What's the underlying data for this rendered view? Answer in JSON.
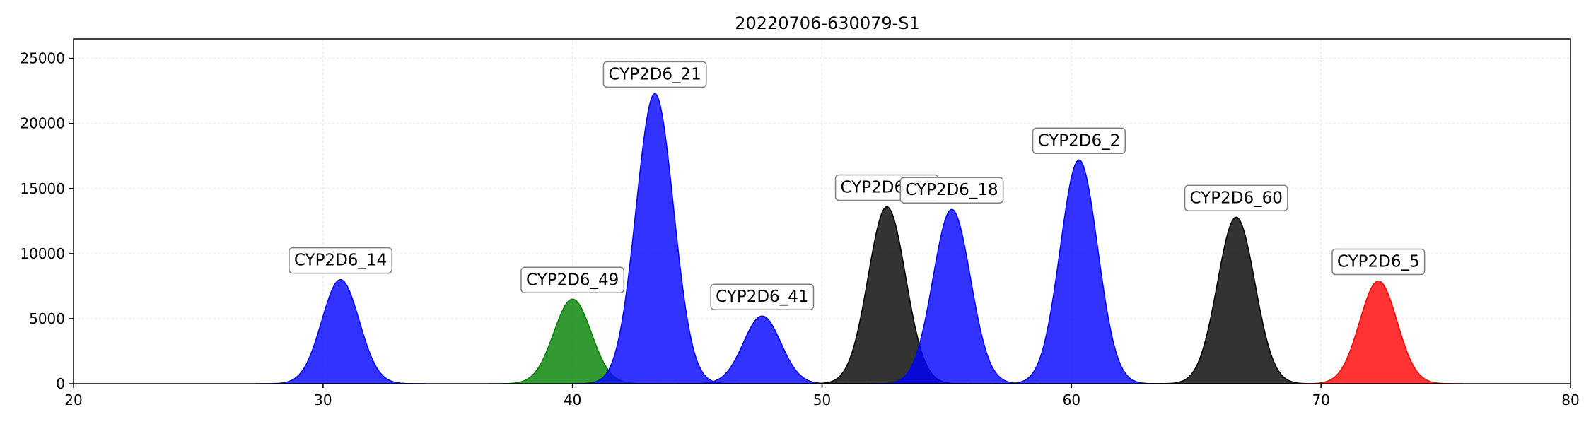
{
  "chart_data": {
    "type": "area",
    "title": "20220706-630079-S1",
    "xlim": [
      20,
      80
    ],
    "ylim": [
      0,
      26500
    ],
    "xticks": [
      20,
      30,
      40,
      50,
      60,
      70,
      80
    ],
    "yticks": [
      0,
      5000,
      10000,
      15000,
      20000,
      25000
    ],
    "grid": true,
    "peaks": [
      {
        "label": "CYP2D6_14",
        "center": 30.7,
        "height": 8000,
        "sigma": 0.75,
        "color": "#0000ff"
      },
      {
        "label": "CYP2D6_49",
        "center": 40.0,
        "height": 6500,
        "sigma": 0.75,
        "color": "#008000"
      },
      {
        "label": "CYP2D6_21",
        "center": 43.3,
        "height": 22300,
        "sigma": 0.75,
        "color": "#0000ff"
      },
      {
        "label": "CYP2D6_41",
        "center": 47.6,
        "height": 5200,
        "sigma": 0.75,
        "color": "#0000ff"
      },
      {
        "label": "CYP2D6_52",
        "center": 52.6,
        "height": 13600,
        "sigma": 0.75,
        "color": "#000000"
      },
      {
        "label": "CYP2D6_18",
        "center": 55.2,
        "height": 13400,
        "sigma": 0.75,
        "color": "#0000ff"
      },
      {
        "label": "CYP2D6_2",
        "center": 60.3,
        "height": 17200,
        "sigma": 0.75,
        "color": "#0000ff"
      },
      {
        "label": "CYP2D6_60",
        "center": 66.6,
        "height": 12800,
        "sigma": 0.75,
        "color": "#000000"
      },
      {
        "label": "CYP2D6_5",
        "center": 72.3,
        "height": 7900,
        "sigma": 0.75,
        "color": "#ff0000"
      }
    ]
  }
}
